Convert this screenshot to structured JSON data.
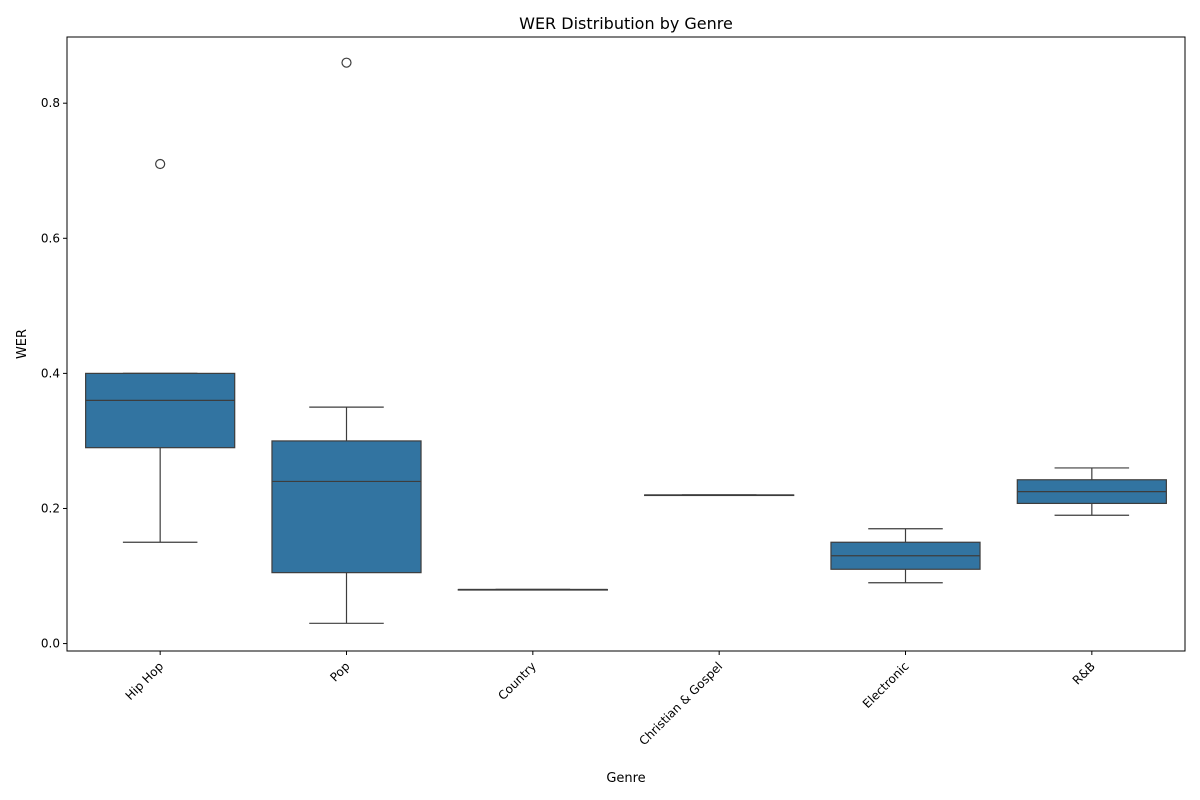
{
  "chart_data": {
    "type": "boxplot",
    "title": "WER Distribution by Genre",
    "xlabel": "Genre",
    "ylabel": "WER",
    "ylim": [
      -0.011,
      0.898
    ],
    "yticks": [
      "0.0",
      "0.2",
      "0.4",
      "0.6",
      "0.8"
    ],
    "categories": [
      "Hip Hop",
      "Pop",
      "Country",
      "Christian & Gospel",
      "Electronic",
      "R&B"
    ],
    "boxes": [
      {
        "category": "Hip Hop",
        "whisker_low": 0.15,
        "q1": 0.29,
        "median": 0.36,
        "q3": 0.4,
        "whisker_high": 0.4,
        "outliers": [
          0.71
        ]
      },
      {
        "category": "Pop",
        "whisker_low": 0.03,
        "q1": 0.105,
        "median": 0.24,
        "q3": 0.3,
        "whisker_high": 0.35,
        "outliers": [
          0.86
        ]
      },
      {
        "category": "Country",
        "whisker_low": 0.08,
        "q1": 0.08,
        "median": 0.08,
        "q3": 0.08,
        "whisker_high": 0.08,
        "outliers": []
      },
      {
        "category": "Christian & Gospel",
        "whisker_low": 0.22,
        "q1": 0.22,
        "median": 0.22,
        "q3": 0.22,
        "whisker_high": 0.22,
        "outliers": []
      },
      {
        "category": "Electronic",
        "whisker_low": 0.09,
        "q1": 0.11,
        "median": 0.13,
        "q3": 0.15,
        "whisker_high": 0.17,
        "outliers": []
      },
      {
        "category": "R&B",
        "whisker_low": 0.19,
        "q1": 0.2075,
        "median": 0.225,
        "q3": 0.2425,
        "whisker_high": 0.26,
        "outliers": []
      }
    ],
    "box_color": "#3274a1",
    "line_color": "#3d3d3d",
    "grid": false,
    "legend": "none"
  }
}
